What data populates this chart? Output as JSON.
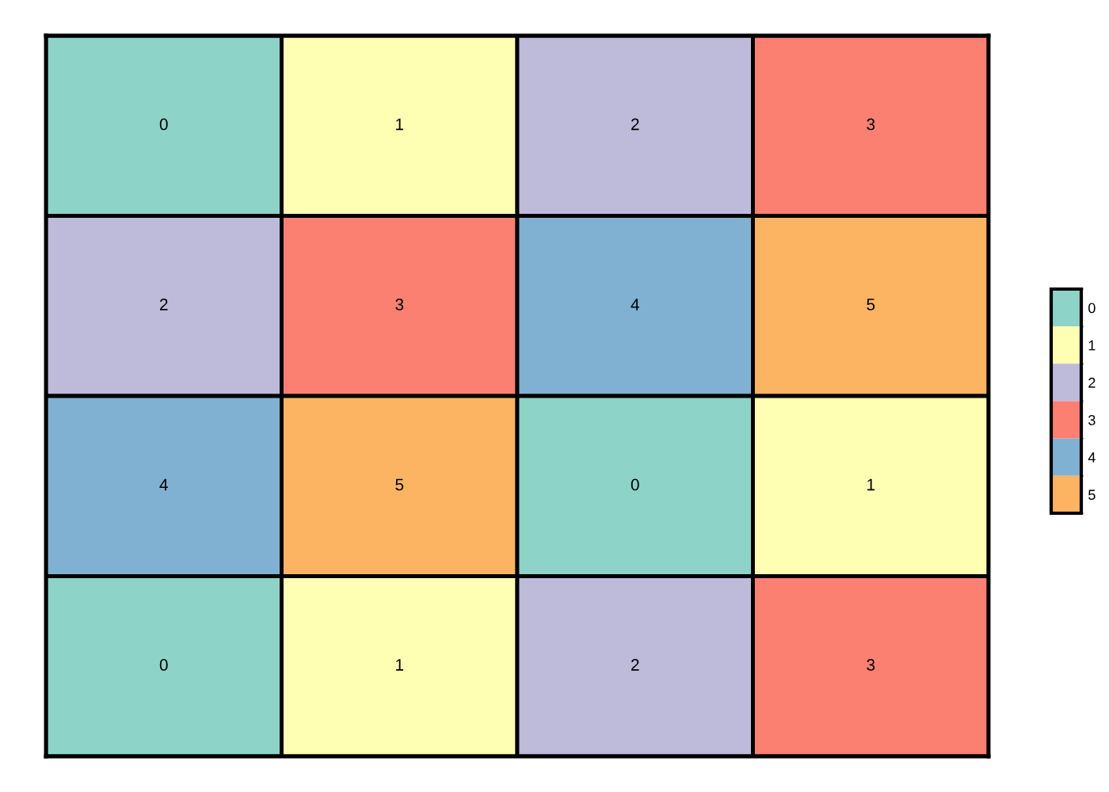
{
  "chart_data": {
    "type": "heatmap",
    "categories": [
      null,
      null,
      null,
      null
    ],
    "y_categories": [
      null,
      null,
      null,
      null
    ],
    "cells": [
      [
        0,
        1,
        2,
        3
      ],
      [
        2,
        3,
        4,
        5
      ],
      [
        4,
        5,
        0,
        1
      ],
      [
        0,
        1,
        2,
        3
      ]
    ],
    "clim": [
      -0.5,
      5.5
    ],
    "cticks": [
      0,
      1,
      2,
      3,
      4,
      5
    ],
    "colors": [
      "#8dd3c7",
      "#ffffb3",
      "#bebada",
      "#fb8072",
      "#80b1d3",
      "#fdb462"
    ],
    "data_labels": true,
    "tick_labels": false,
    "grid": false
  }
}
